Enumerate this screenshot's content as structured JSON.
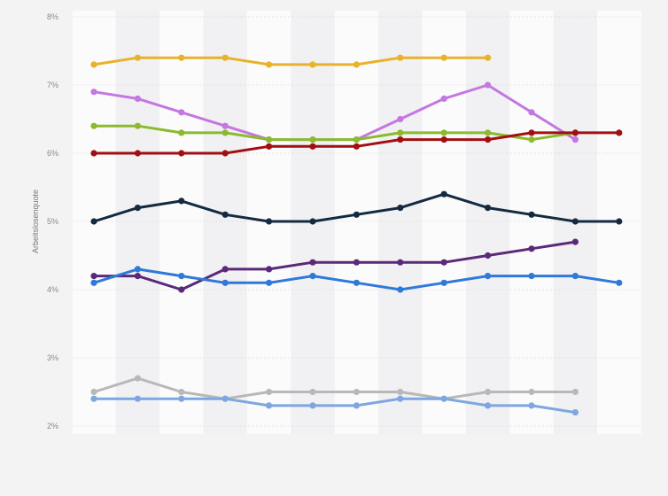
{
  "chart_data": {
    "type": "line",
    "title": "",
    "xlabel": "",
    "ylabel": "Arbeitslosenquote",
    "ylim": [
      2,
      8
    ],
    "yticks": [
      "2%",
      "3%",
      "4%",
      "5%",
      "6%",
      "7%",
      "8%"
    ],
    "ytick_values": [
      2,
      3,
      4,
      5,
      6,
      7,
      8
    ],
    "x": [
      1,
      2,
      3,
      4,
      5,
      6,
      7,
      8,
      9,
      10,
      11,
      12,
      13
    ],
    "grid": true,
    "legend": "none",
    "series": [
      {
        "color": "#e8b22a",
        "values": [
          7.3,
          7.4,
          7.4,
          7.4,
          7.3,
          7.3,
          7.3,
          7.4,
          7.4,
          7.4,
          null,
          null,
          null
        ]
      },
      {
        "color": "#c477e0",
        "values": [
          6.9,
          6.8,
          6.6,
          6.4,
          6.2,
          6.2,
          6.2,
          6.5,
          6.8,
          7.0,
          6.6,
          6.2,
          null
        ]
      },
      {
        "color": "#8bbb2d",
        "values": [
          6.4,
          6.4,
          6.3,
          6.3,
          6.2,
          6.2,
          6.2,
          6.3,
          6.3,
          6.3,
          6.2,
          6.3,
          null
        ]
      },
      {
        "color": "#a10f12",
        "values": [
          6.0,
          6.0,
          6.0,
          6.0,
          6.1,
          6.1,
          6.1,
          6.2,
          6.2,
          6.2,
          6.3,
          6.3,
          6.3
        ]
      },
      {
        "color": "#142a40",
        "values": [
          5.0,
          5.2,
          5.3,
          5.1,
          5.0,
          5.0,
          5.1,
          5.2,
          5.4,
          5.2,
          5.1,
          5.0,
          5.0
        ]
      },
      {
        "color": "#5a2a7a",
        "values": [
          4.2,
          4.2,
          4.0,
          4.3,
          4.3,
          4.4,
          4.4,
          4.4,
          4.4,
          4.5,
          4.6,
          4.7,
          null
        ]
      },
      {
        "color": "#2f79d8",
        "values": [
          4.1,
          4.3,
          4.2,
          4.1,
          4.1,
          4.2,
          4.1,
          4.0,
          4.1,
          4.2,
          4.2,
          4.2,
          4.1
        ]
      },
      {
        "color": "#b8b8b8",
        "values": [
          2.5,
          2.7,
          2.5,
          2.4,
          2.5,
          2.5,
          2.5,
          2.5,
          2.4,
          2.5,
          2.5,
          2.5,
          null
        ]
      },
      {
        "color": "#7ea6e0",
        "values": [
          2.4,
          2.4,
          2.4,
          2.4,
          2.3,
          2.3,
          2.3,
          2.4,
          2.4,
          2.3,
          2.3,
          2.2,
          null
        ]
      }
    ]
  }
}
